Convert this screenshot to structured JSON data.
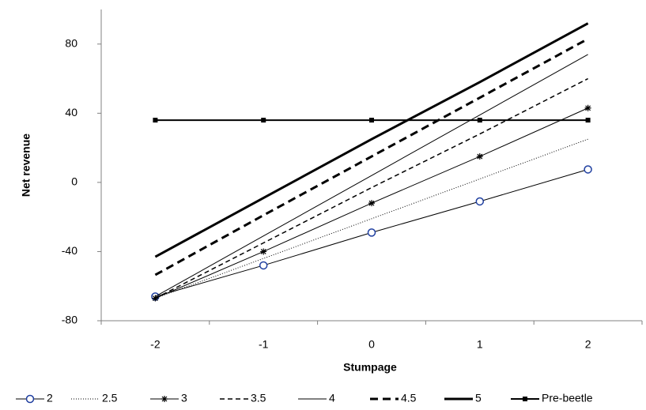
{
  "chart_data": {
    "type": "line",
    "x_label": "Stumpage",
    "y_label": "Net revenue",
    "categories": [
      "-2",
      "-1",
      "0",
      "1",
      "2"
    ],
    "ylim": [
      -80,
      100
    ],
    "yticks": [
      -80,
      -40,
      0,
      40,
      80
    ],
    "grid": false,
    "legend": "bottom",
    "series": [
      {
        "name": "2",
        "color": "#000000",
        "dash": "none",
        "width": 1,
        "marker": "circle",
        "marker_color": "#1f3fa0",
        "values": [
          -66,
          -48,
          -29,
          -11,
          7.5
        ]
      },
      {
        "name": "2.5",
        "color": "#000000",
        "dash": "1 2",
        "width": 1,
        "marker": "none",
        "values": [
          -67,
          -44,
          -21,
          2,
          25
        ]
      },
      {
        "name": "3",
        "color": "#000000",
        "dash": "none",
        "width": 1,
        "marker": "star",
        "values": [
          -67,
          -40,
          -12,
          15,
          43
        ]
      },
      {
        "name": "3.5",
        "color": "#000000",
        "dash": "6 4",
        "width": 1.5,
        "marker": "none",
        "values": [
          -67,
          -35,
          -3,
          28,
          60
        ]
      },
      {
        "name": "4",
        "color": "#000000",
        "dash": "none",
        "width": 1,
        "marker": "none",
        "values": [
          -66,
          -31,
          4,
          39,
          74
        ]
      },
      {
        "name": "4.5",
        "color": "#000000",
        "dash": "10 6",
        "width": 3,
        "marker": "none",
        "values": [
          -53.5,
          -19,
          15,
          49,
          83
        ]
      },
      {
        "name": "5",
        "color": "#000000",
        "dash": "none",
        "width": 3,
        "marker": "none",
        "values": [
          -43,
          -9,
          25,
          58,
          92
        ]
      },
      {
        "name": "Pre-beetle",
        "color": "#000000",
        "dash": "none",
        "width": 2,
        "marker": "square",
        "values": [
          36,
          36,
          36,
          36,
          36
        ]
      }
    ]
  }
}
